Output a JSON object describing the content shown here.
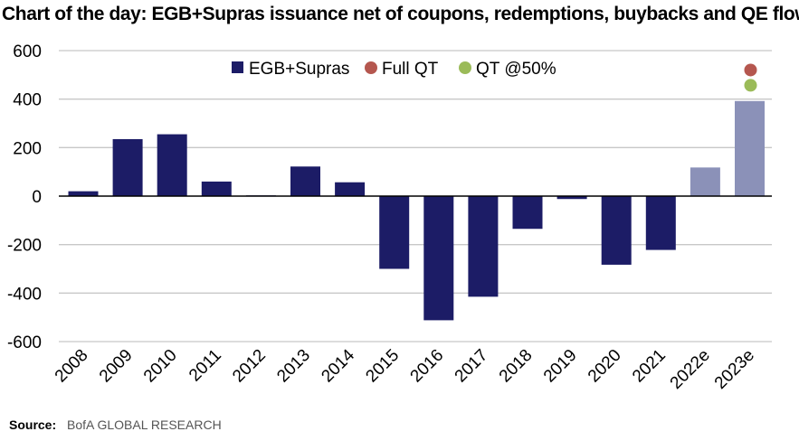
{
  "header": {
    "title": "Chart of the day: EGB+Supras issuance net of coupons, redemptions, buybacks and QE flows"
  },
  "footer": {
    "source_label": "Source:",
    "source_value": "BofA GLOBAL RESEARCH"
  },
  "chart_data": {
    "type": "bar",
    "title": "Chart of the day: EGB+Supras issuance net of coupons, redemptions, buybacks and QE flows",
    "xlabel": "",
    "ylabel": "",
    "ylim": [
      -600,
      600
    ],
    "yticks": [
      600,
      400,
      200,
      0,
      -200,
      -400,
      -600
    ],
    "grid": true,
    "legend_position": "top-center",
    "categories": [
      "2008",
      "2009",
      "2010",
      "2011",
      "2012",
      "2013",
      "2014",
      "2015",
      "2016",
      "2017",
      "2018",
      "2019",
      "2020",
      "2021",
      "2022e",
      "2023e"
    ],
    "series": [
      {
        "name": "EGB+Supras",
        "marker": "bar",
        "color": "#1c1c66",
        "estimate_color": "#8b91b8",
        "values": [
          20,
          235,
          255,
          60,
          3,
          122,
          57,
          -300,
          -512,
          -415,
          -135,
          -12,
          -283,
          -222,
          118,
          392
        ]
      },
      {
        "name": "Full QT",
        "marker": "dot",
        "color": "#b5574f",
        "values": [
          null,
          null,
          null,
          null,
          null,
          null,
          null,
          null,
          null,
          null,
          null,
          null,
          null,
          null,
          null,
          520
        ]
      },
      {
        "name": "QT @50%",
        "marker": "dot",
        "color": "#9bbb59",
        "values": [
          null,
          null,
          null,
          null,
          null,
          null,
          null,
          null,
          null,
          null,
          null,
          null,
          null,
          null,
          null,
          457
        ]
      }
    ]
  }
}
